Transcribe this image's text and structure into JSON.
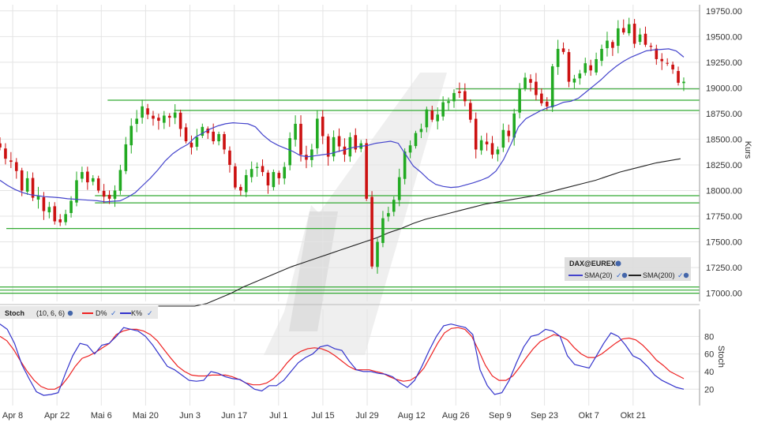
{
  "colors": {
    "background": "#ffffff",
    "grid": "#e4e4e4",
    "up_candle": "#22aa22",
    "down_candle": "#cc1111",
    "sma20": "#4444cc",
    "sma200": "#222222",
    "support_lines": "#33aa33",
    "stoch_d": "#ee2222",
    "stoch_k": "#3333cc",
    "watermark": "#d9d9d9"
  },
  "chart_data": [
    {
      "type": "candlestick",
      "title": "",
      "ylabel": "Kurs",
      "ylim": [
        16920,
        19810
      ],
      "y_ticks": [
        "17000.00",
        "17250.00",
        "17500.00",
        "17750.00",
        "18000.00",
        "18250.00",
        "18500.00",
        "18750.00",
        "19000.00",
        "19250.00",
        "19500.00",
        "19750.00"
      ],
      "y_tick_values": [
        17000,
        17250,
        17500,
        17750,
        18000,
        18250,
        18500,
        18750,
        19000,
        19250,
        19500,
        19750
      ],
      "x_ticks": [
        "Apr 8",
        "Apr 22",
        "Mai 6",
        "Mai 20",
        "Jun 3",
        "Jun 17",
        "Jul 1",
        "Jul 15",
        "Jul 29",
        "Aug 12",
        "Aug 26",
        "Sep 9",
        "Sep 23",
        "Okt 7",
        "Okt 21"
      ],
      "x_tick_days": [
        0,
        14,
        28,
        42,
        56,
        70,
        84,
        98,
        112,
        126,
        140,
        154,
        168,
        182,
        196
      ],
      "day_start": -4,
      "day_end": 217,
      "legend": {
        "title": "DAX@EUREX",
        "entries": [
          "SMA(20)",
          "SMA(200)"
        ]
      },
      "horizontal_lines": [
        {
          "value": 17630,
          "from_day": -2
        },
        {
          "value": 17880,
          "from_day": 26
        },
        {
          "value": 17950,
          "from_day": 26
        },
        {
          "value": 18780,
          "from_day": 51
        },
        {
          "value": 18880,
          "from_day": 30
        },
        {
          "value": 18990,
          "from_day": 140
        },
        {
          "value": 17000,
          "from_day": -4
        },
        {
          "value": 17030,
          "from_day": -4
        },
        {
          "value": 17060,
          "from_day": -4
        }
      ],
      "closes": [
        18420,
        18310,
        18280,
        18190,
        18000,
        18120,
        17930,
        17950,
        17800,
        17840,
        17700,
        17690,
        17770,
        17900,
        18100,
        18180,
        18080,
        18120,
        18000,
        17940,
        17920,
        18000,
        18200,
        18450,
        18630,
        18700,
        18820,
        18740,
        18700,
        18680,
        18730,
        18710,
        18760,
        18600,
        18480,
        18420,
        18520,
        18620,
        18560,
        18480,
        18550,
        18400,
        18250,
        18030,
        18000,
        18150,
        18210,
        18230,
        18180,
        18050,
        18180,
        18120,
        18230,
        18510,
        18650,
        18350,
        18300,
        18400,
        18700,
        18530,
        18330,
        18520,
        18430,
        18350,
        18520,
        18400,
        18460,
        17920,
        17260,
        17500,
        17730,
        17780,
        17910,
        18130,
        18380,
        18440,
        18560,
        18600,
        18790,
        18690,
        18740,
        18860,
        18870,
        18950,
        18950,
        18870,
        18690,
        18400,
        18490,
        18450,
        18350,
        18400,
        18590,
        18530,
        18750,
        18990,
        19100,
        19050,
        18930,
        18850,
        18820,
        19210,
        19380,
        19350,
        19060,
        19090,
        19140,
        19240,
        19170,
        19280,
        19380,
        19460,
        19390,
        19580,
        19540,
        19620,
        19430,
        19520,
        19420,
        19400,
        19280,
        19260,
        19240,
        19180,
        19050,
        19060
      ],
      "sma20": [
        18100,
        18050,
        18010,
        17980,
        17960,
        17950,
        17940,
        17935,
        17930,
        17920,
        17915,
        17910,
        17905,
        17900,
        17890,
        17895,
        17900,
        17935,
        17980,
        18050,
        18120,
        18200,
        18290,
        18360,
        18410,
        18450,
        18520,
        18560,
        18600,
        18630,
        18650,
        18660,
        18655,
        18650,
        18620,
        18540,
        18480,
        18440,
        18410,
        18380,
        18340,
        18330,
        18340,
        18350,
        18360,
        18380,
        18400,
        18420,
        18430,
        18440,
        18460,
        18470,
        18480,
        18460,
        18350,
        18240,
        18180,
        18110,
        18060,
        18040,
        18030,
        18035,
        18055,
        18075,
        18100,
        18130,
        18190,
        18300,
        18450,
        18620,
        18700,
        18740,
        18780,
        18810,
        18830,
        18860,
        18870,
        18900,
        18960,
        19020,
        19080,
        19150,
        19210,
        19260,
        19300,
        19330,
        19360,
        19370,
        19375,
        19380,
        19360,
        19300
      ],
      "sma20_start_index": 0,
      "sma200": [
        16730,
        16760,
        16800,
        16850,
        16900,
        16950,
        17000,
        17060,
        17110,
        17160,
        17210,
        17260,
        17300,
        17340,
        17380,
        17420,
        17460,
        17500,
        17540,
        17590,
        17630,
        17680,
        17720,
        17750,
        17780,
        17810,
        17840,
        17870,
        17890,
        17910,
        17930,
        17950,
        17980,
        18010,
        18040,
        18070,
        18100,
        18140,
        18180,
        18210,
        18240,
        18270,
        18290,
        18310
      ],
      "sma200_start_index": 43
    },
    {
      "type": "line",
      "title": "Stoch",
      "params": "(10, 6, 6)",
      "ylabel": "Stoch",
      "ylim": [
        5,
        100
      ],
      "y_ticks": [
        "20",
        "40",
        "60",
        "80"
      ],
      "y_tick_values": [
        20,
        40,
        60,
        80
      ],
      "series": [
        {
          "name": "D%",
          "values": [
            80,
            75,
            65,
            52,
            40,
            30,
            23,
            20,
            20,
            24,
            34,
            46,
            55,
            58,
            62,
            67,
            72,
            82,
            86,
            88,
            88,
            86,
            82,
            75,
            65,
            55,
            46,
            40,
            36,
            35,
            35,
            36,
            36,
            36,
            34,
            31,
            27,
            25,
            25,
            27,
            32,
            40,
            50,
            58,
            63,
            66,
            67,
            66,
            63,
            58,
            52,
            46,
            42,
            42,
            42,
            40,
            38,
            34,
            31,
            29,
            30,
            35,
            44,
            58,
            72,
            84,
            89,
            90,
            88,
            80,
            64,
            47,
            35,
            30,
            30,
            35,
            45,
            56,
            66,
            74,
            78,
            82,
            80,
            76,
            67,
            60,
            56,
            56,
            60,
            66,
            72,
            77,
            78,
            76,
            70,
            62,
            53,
            47,
            40,
            36,
            32
          ]
        },
        {
          "name": "K%",
          "values": [
            94,
            88,
            72,
            48,
            32,
            17,
            13,
            14,
            16,
            38,
            58,
            72,
            70,
            60,
            70,
            72,
            80,
            90,
            88,
            86,
            80,
            70,
            58,
            46,
            42,
            36,
            30,
            29,
            30,
            40,
            38,
            34,
            32,
            31,
            26,
            20,
            18,
            24,
            24,
            30,
            40,
            50,
            56,
            60,
            68,
            70,
            66,
            64,
            52,
            42,
            40,
            40,
            38,
            37,
            34,
            27,
            22,
            30,
            46,
            64,
            80,
            92,
            94,
            92,
            90,
            82,
            42,
            24,
            14,
            16,
            30,
            50,
            68,
            80,
            82,
            88,
            86,
            80,
            58,
            48,
            46,
            44,
            58,
            72,
            84,
            80,
            70,
            58,
            54,
            46,
            36,
            30,
            26,
            22,
            20
          ]
        }
      ],
      "d_series_start_day": -4,
      "d_series_end_day": 212,
      "k_series_start_day": -4,
      "k_series_end_day": 212
    }
  ]
}
